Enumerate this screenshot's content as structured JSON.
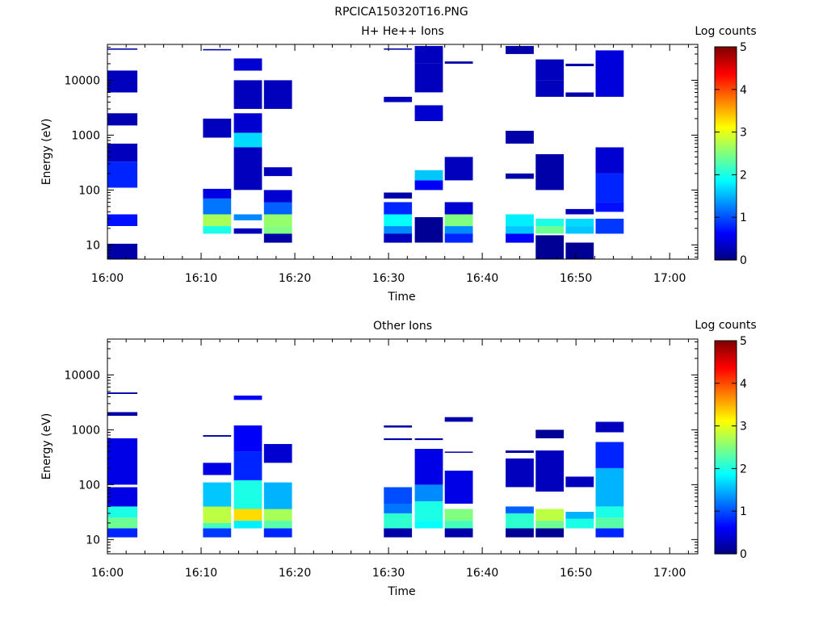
{
  "figure_title": "RPCICA150320T16.PNG",
  "chart_data": [
    {
      "type": "heatmap",
      "title": "H+ He++ Ions",
      "xlabel": "Time",
      "ylabel": "Energy (eV)",
      "xticks": [
        "16:00",
        "16:10",
        "16:20",
        "16:30",
        "16:40",
        "16:50",
        "17:00"
      ],
      "xlim_minutes": [
        0,
        63
      ],
      "yscale": "log",
      "ylim": [
        5.5,
        45000
      ],
      "yticks": [
        10,
        100,
        1000,
        10000
      ],
      "yticklabels": [
        "10",
        "100",
        "1000",
        "10000"
      ],
      "colorbar": {
        "label": "Log counts",
        "range": [
          0,
          5
        ],
        "ticks": [
          "0",
          "1",
          "2",
          "3",
          "4",
          "5"
        ]
      },
      "sweeps": [
        {
          "t": [
            0.0,
            3.2
          ],
          "bins": [
            [
              5.5,
              10.5,
              0.2
            ],
            [
              22,
              36,
              0.7
            ],
            [
              110,
              330,
              0.8
            ],
            [
              330,
              700,
              0.3
            ],
            [
              6000,
              15000,
              0.3
            ],
            [
              1500,
              2500,
              0.25
            ],
            [
              36000,
              38000,
              0.2
            ]
          ]
        },
        {
          "t": [
            10.2,
            13.2
          ],
          "bins": [
            [
              16,
              22,
              2.0
            ],
            [
              22,
              36,
              2.7
            ],
            [
              36,
              70,
              1.2
            ],
            [
              70,
              105,
              0.5
            ],
            [
              900,
              2000,
              0.3
            ],
            [
              35000,
              37000,
              0.2
            ]
          ]
        },
        {
          "t": [
            13.5,
            16.5
          ],
          "bins": [
            [
              16,
              20,
              0.3
            ],
            [
              28,
              36,
              1.3
            ],
            [
              100,
              300,
              0.3
            ],
            [
              300,
              600,
              0.3
            ],
            [
              600,
              1100,
              1.7
            ],
            [
              1100,
              2500,
              0.4
            ],
            [
              3000,
              10000,
              0.3
            ],
            [
              15000,
              25000,
              0.4
            ]
          ]
        },
        {
          "t": [
            16.7,
            19.7
          ],
          "bins": [
            [
              11,
              16,
              0.2
            ],
            [
              16,
              22,
              2.5
            ],
            [
              22,
              36,
              2.6
            ],
            [
              36,
              60,
              1.1
            ],
            [
              60,
              100,
              0.4
            ],
            [
              180,
              260,
              0.3
            ],
            [
              3000,
              10000,
              0.3
            ]
          ]
        },
        {
          "t": [
            29.5,
            32.5
          ],
          "bins": [
            [
              11,
              16,
              0.3
            ],
            [
              16,
              22,
              1.3
            ],
            [
              22,
              36,
              1.9
            ],
            [
              36,
              60,
              0.8
            ],
            [
              70,
              90,
              0.2
            ],
            [
              4000,
              5000,
              0.3
            ],
            [
              36000,
              38000,
              0.2
            ]
          ]
        },
        {
          "t": [
            32.8,
            35.8
          ],
          "bins": [
            [
              11,
              32,
              0.1
            ],
            [
              100,
              150,
              0.6
            ],
            [
              150,
              230,
              1.6
            ],
            [
              1800,
              3500,
              0.4
            ],
            [
              6000,
              20000,
              0.3
            ],
            [
              20000,
              42000,
              0.3
            ]
          ]
        },
        {
          "t": [
            36.0,
            39.0
          ],
          "bins": [
            [
              11,
              16,
              0.8
            ],
            [
              16,
              22,
              1.3
            ],
            [
              22,
              36,
              2.5
            ],
            [
              36,
              60,
              0.4
            ],
            [
              150,
              400,
              0.3
            ],
            [
              20000,
              22000,
              0.2
            ]
          ]
        },
        {
          "t": [
            42.5,
            45.5
          ],
          "bins": [
            [
              11,
              16,
              0.6
            ],
            [
              16,
              22,
              1.6
            ],
            [
              22,
              36,
              1.8
            ],
            [
              160,
              200,
              0.2
            ],
            [
              700,
              1200,
              0.2
            ],
            [
              30000,
              42000,
              0.2
            ]
          ]
        },
        {
          "t": [
            45.7,
            48.7
          ],
          "bins": [
            [
              5.5,
              15,
              0.1
            ],
            [
              16,
              22,
              2.4
            ],
            [
              22,
              30,
              2.0
            ],
            [
              100,
              450,
              0.2
            ],
            [
              5000,
              10000,
              0.3
            ],
            [
              10000,
              24000,
              0.3
            ]
          ]
        },
        {
          "t": [
            48.9,
            51.9
          ],
          "bins": [
            [
              5.5,
              11,
              0.1
            ],
            [
              16,
              22,
              1.6
            ],
            [
              22,
              30,
              1.7
            ],
            [
              36,
              45,
              0.3
            ],
            [
              5000,
              6000,
              0.2
            ],
            [
              18000,
              20000,
              0.2
            ]
          ]
        },
        {
          "t": [
            52.1,
            55.1
          ],
          "bins": [
            [
              16,
              30,
              0.9
            ],
            [
              40,
              60,
              0.7
            ],
            [
              60,
              200,
              0.8
            ],
            [
              200,
              600,
              0.4
            ],
            [
              5000,
              35000,
              0.45
            ]
          ]
        }
      ]
    },
    {
      "type": "heatmap",
      "title": "Other Ions",
      "xlabel": "Time",
      "ylabel": "Energy (eV)",
      "xticks": [
        "16:00",
        "16:10",
        "16:20",
        "16:30",
        "16:40",
        "16:50",
        "17:00"
      ],
      "xlim_minutes": [
        0,
        63
      ],
      "yscale": "log",
      "ylim": [
        5.5,
        45000
      ],
      "yticks": [
        10,
        100,
        1000,
        10000
      ],
      "yticklabels": [
        "10",
        "100",
        "1000",
        "10000"
      ],
      "colorbar": {
        "label": "Log counts",
        "range": [
          0,
          5
        ],
        "ticks": [
          "0",
          "1",
          "2",
          "3",
          "4",
          "5"
        ]
      },
      "sweeps": [
        {
          "t": [
            0.0,
            3.2
          ],
          "bins": [
            [
              11,
              16,
              0.8
            ],
            [
              16,
              25,
              2.4
            ],
            [
              25,
              40,
              2.0
            ],
            [
              40,
              90,
              0.5
            ],
            [
              100,
              700,
              0.5
            ],
            [
              1800,
              2100,
              0.2
            ],
            [
              4500,
              4800,
              0.2
            ]
          ]
        },
        {
          "t": [
            10.2,
            13.2
          ],
          "bins": [
            [
              11,
              16,
              0.9
            ],
            [
              16,
              20,
              2.2
            ],
            [
              20,
              40,
              2.8
            ],
            [
              40,
              110,
              1.6
            ],
            [
              150,
              250,
              0.5
            ],
            [
              750,
              800,
              0.2
            ]
          ]
        },
        {
          "t": [
            13.5,
            16.5
          ],
          "bins": [
            [
              16,
              22,
              1.8
            ],
            [
              22,
              36,
              3.3
            ],
            [
              36,
              120,
              2.0
            ],
            [
              120,
              400,
              0.8
            ],
            [
              400,
              1200,
              0.6
            ],
            [
              3500,
              4200,
              0.6
            ]
          ]
        },
        {
          "t": [
            16.7,
            19.7
          ],
          "bins": [
            [
              11,
              16,
              0.8
            ],
            [
              16,
              22,
              2.3
            ],
            [
              22,
              36,
              2.7
            ],
            [
              36,
              110,
              1.5
            ],
            [
              250,
              550,
              0.4
            ]
          ]
        },
        {
          "t": [
            29.5,
            32.5
          ],
          "bins": [
            [
              11,
              16,
              0.2
            ],
            [
              16,
              30,
              2.1
            ],
            [
              30,
              45,
              1.2
            ],
            [
              45,
              90,
              1.0
            ],
            [
              650,
              700,
              0.2
            ],
            [
              1100,
              1200,
              0.2
            ]
          ]
        },
        {
          "t": [
            32.8,
            35.8
          ],
          "bins": [
            [
              16,
              22,
              1.9
            ],
            [
              22,
              50,
              2.0
            ],
            [
              50,
              100,
              1.3
            ],
            [
              100,
              450,
              0.5
            ],
            [
              650,
              700,
              0.2
            ]
          ]
        },
        {
          "t": [
            36.0,
            39.0
          ],
          "bins": [
            [
              11,
              16,
              0.2
            ],
            [
              16,
              22,
              2.2
            ],
            [
              22,
              36,
              2.5
            ],
            [
              45,
              180,
              0.5
            ],
            [
              380,
              400,
              0.2
            ],
            [
              1400,
              1700,
              0.2
            ]
          ]
        },
        {
          "t": [
            42.5,
            45.5
          ],
          "bins": [
            [
              11,
              16,
              0.1
            ],
            [
              16,
              30,
              2.1
            ],
            [
              30,
              40,
              1.1
            ],
            [
              90,
              300,
              0.3
            ],
            [
              380,
              420,
              0.2
            ]
          ]
        },
        {
          "t": [
            45.7,
            48.7
          ],
          "bins": [
            [
              11,
              16,
              0.1
            ],
            [
              16,
              22,
              2.4
            ],
            [
              22,
              36,
              2.8
            ],
            [
              75,
              420,
              0.3
            ],
            [
              700,
              1000,
              0.1
            ]
          ]
        },
        {
          "t": [
            48.9,
            51.9
          ],
          "bins": [
            [
              16,
              24,
              2.0
            ],
            [
              24,
              32,
              1.5
            ],
            [
              90,
              140,
              0.3
            ]
          ]
        },
        {
          "t": [
            52.1,
            55.1
          ],
          "bins": [
            [
              11,
              16,
              0.8
            ],
            [
              16,
              25,
              2.3
            ],
            [
              25,
              40,
              2.0
            ],
            [
              40,
              200,
              1.5
            ],
            [
              200,
              600,
              0.8
            ],
            [
              900,
              1400,
              0.3
            ]
          ]
        }
      ]
    }
  ]
}
